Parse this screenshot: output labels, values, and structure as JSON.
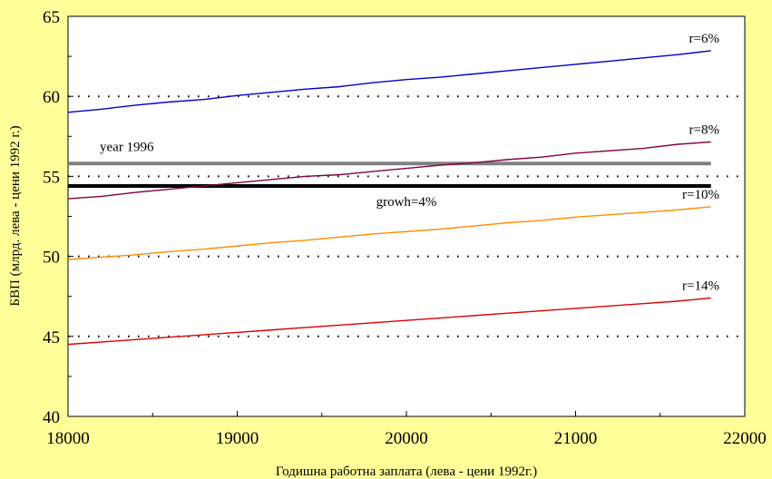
{
  "chart_data": {
    "type": "line",
    "xlabel": "Годишна работна заплата (лева - цени 1992г.)",
    "ylabel": "БВП (млрд. лева - цени 1992 г.)",
    "xlim": [
      18000,
      22000
    ],
    "ylim": [
      40,
      65
    ],
    "xticks": [
      18000,
      19000,
      20000,
      21000,
      22000
    ],
    "yticks": [
      40,
      45,
      50,
      55,
      60,
      65
    ],
    "grid": "horizontal dotted",
    "series": [
      {
        "name": "r=6%",
        "color": "#0000CC",
        "x": [
          18000,
          18200,
          18400,
          18600,
          18800,
          19000,
          19200,
          19400,
          19600,
          19800,
          20000,
          20200,
          20400,
          20600,
          20800,
          21000,
          21200,
          21400,
          21600,
          21800
        ],
        "values": [
          59.0,
          59.2,
          59.45,
          59.65,
          59.8,
          60.05,
          60.25,
          60.45,
          60.6,
          60.85,
          61.05,
          61.2,
          61.4,
          61.6,
          61.8,
          62.0,
          62.2,
          62.4,
          62.6,
          62.85
        ]
      },
      {
        "name": "r=8%",
        "color": "#800040",
        "x": [
          18000,
          18200,
          18400,
          18600,
          18800,
          19000,
          19200,
          19400,
          19600,
          19800,
          20000,
          20200,
          20400,
          20600,
          20800,
          21000,
          21200,
          21400,
          21600,
          21800
        ],
        "values": [
          53.6,
          53.75,
          54.0,
          54.2,
          54.4,
          54.6,
          54.8,
          55.0,
          55.1,
          55.3,
          55.5,
          55.7,
          55.85,
          56.05,
          56.2,
          56.45,
          56.6,
          56.75,
          57.0,
          57.15
        ]
      },
      {
        "name": "r=10%",
        "color": "#FF8C00",
        "x": [
          18000,
          18200,
          18400,
          18600,
          18800,
          19000,
          19200,
          19400,
          19600,
          19800,
          20000,
          20200,
          20400,
          20600,
          20800,
          21000,
          21200,
          21400,
          21600,
          21800
        ],
        "values": [
          49.8,
          49.95,
          50.1,
          50.3,
          50.45,
          50.65,
          50.85,
          51.0,
          51.2,
          51.4,
          51.55,
          51.7,
          51.9,
          52.1,
          52.25,
          52.45,
          52.6,
          52.75,
          52.9,
          53.1
        ]
      },
      {
        "name": "r=14%",
        "color": "#DD0000",
        "x": [
          18000,
          18200,
          18400,
          18600,
          18800,
          19000,
          19200,
          19400,
          19600,
          19800,
          20000,
          20200,
          20400,
          20600,
          20800,
          21000,
          21200,
          21400,
          21600,
          21800
        ],
        "values": [
          44.5,
          44.65,
          44.8,
          44.95,
          45.1,
          45.25,
          45.4,
          45.55,
          45.7,
          45.85,
          46.0,
          46.15,
          46.3,
          46.45,
          46.6,
          46.75,
          46.9,
          47.05,
          47.2,
          47.4
        ]
      }
    ],
    "reference_lines": [
      {
        "name": "year 1996",
        "y": 55.8,
        "x_range": [
          18000,
          21800
        ],
        "color": "#808080"
      },
      {
        "name": "growh=4%",
        "y": 54.4,
        "x_range": [
          18000,
          21800
        ],
        "color": "#000000"
      }
    ]
  }
}
